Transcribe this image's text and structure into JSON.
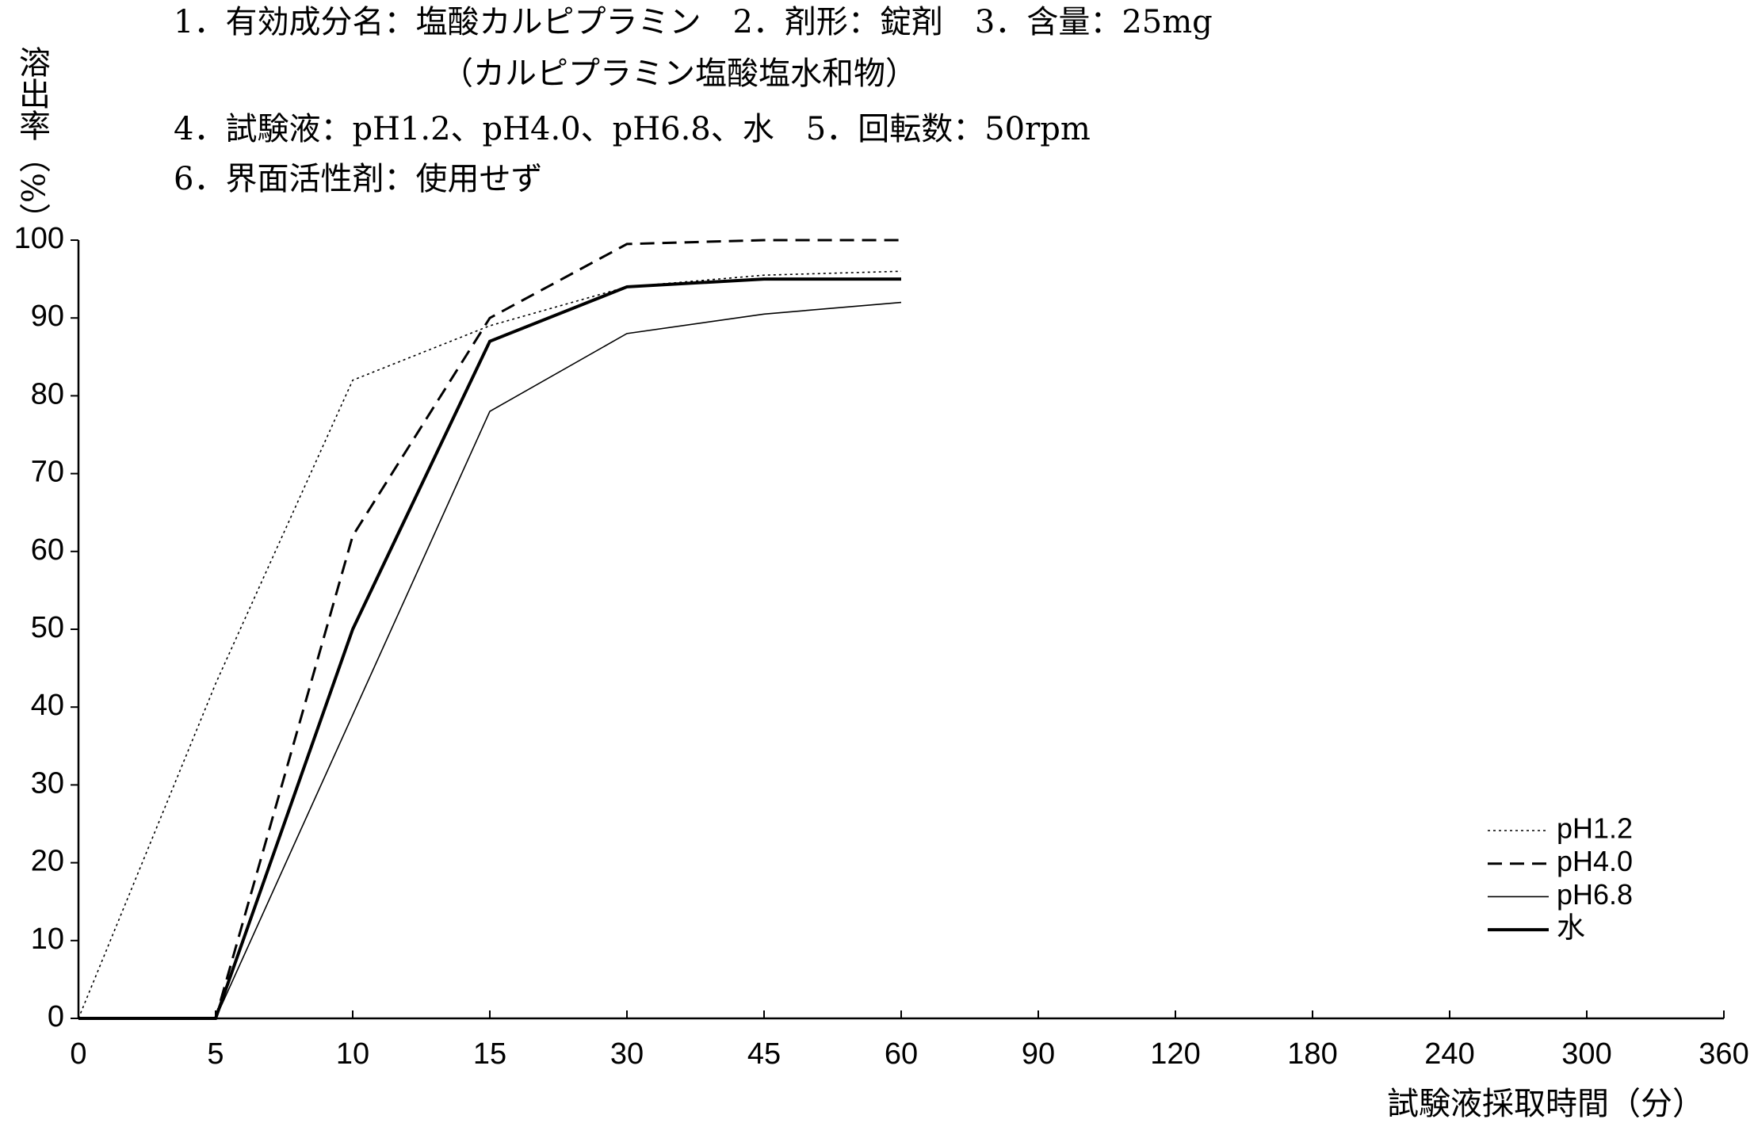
{
  "chart_data": {
    "type": "line",
    "notes": [
      "1．有効成分名：塩酸カルピプラミン　2．剤形：錠剤　3．含量：25mg",
      "（カルピプラミン塩酸塩水和物）",
      "4．試験液：pH1.2、pH4.0、pH6.8、水　5．回転数：50rpm",
      "6．界面活性剤：使用せず"
    ],
    "y_label": "溶出率（%）",
    "x_label": "試験液採取時間（分）",
    "categories": [
      "0",
      "5",
      "10",
      "15",
      "30",
      "45",
      "60",
      "90",
      "120",
      "180",
      "240",
      "300",
      "360"
    ],
    "series": [
      {
        "name": "pH1.2",
        "color": "#000000",
        "style": "dotted",
        "values": [
          0,
          43,
          82,
          89,
          94,
          95.5,
          96,
          null,
          null,
          null,
          null,
          null,
          null
        ]
      },
      {
        "name": "pH4.0",
        "color": "#000000",
        "style": "dashed",
        "values": [
          0,
          0,
          62,
          90,
          99.5,
          100,
          100,
          null,
          null,
          null,
          null,
          null,
          null
        ]
      },
      {
        "name": "pH6.8",
        "color": "#000000",
        "style": "thin",
        "values": [
          0,
          0,
          39,
          78,
          88,
          90.5,
          92,
          null,
          null,
          null,
          null,
          null,
          null
        ]
      },
      {
        "name": "水",
        "color": "#000000",
        "style": "thick",
        "values": [
          0,
          0,
          50,
          87,
          94,
          95,
          95,
          null,
          null,
          null,
          null,
          null,
          null
        ]
      }
    ],
    "ylim": [
      0,
      100
    ],
    "yticks": [
      0,
      10,
      20,
      30,
      40,
      50,
      60,
      70,
      80,
      90,
      100
    ],
    "grid": false,
    "legend": "lower right"
  }
}
